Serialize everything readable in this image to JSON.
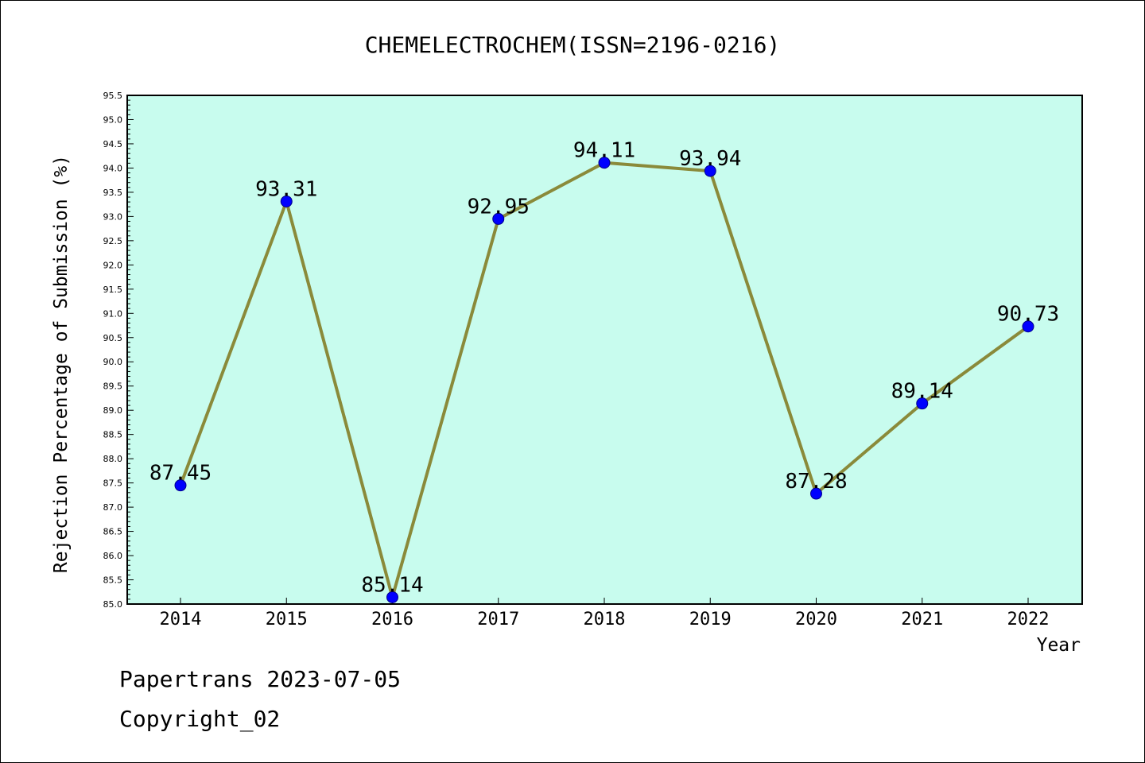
{
  "chart_data": {
    "type": "line",
    "title": "CHEMELECTROCHEM(ISSN=2196-0216)",
    "xlabel": "Year",
    "ylabel": "Rejection Percentage of Submission (%)",
    "categories": [
      "2014",
      "2015",
      "2016",
      "2017",
      "2018",
      "2019",
      "2020",
      "2021",
      "2022"
    ],
    "values": [
      87.45,
      93.31,
      85.14,
      92.95,
      94.11,
      93.94,
      87.28,
      89.14,
      90.73
    ],
    "data_labels": [
      "87.45",
      "93.31",
      "85.14",
      "92.95",
      "94.11",
      "93.94",
      "87.28",
      "89.14",
      "90.73"
    ],
    "ylim": [
      85.0,
      95.5
    ],
    "ytick_step": 0.5,
    "yticks": [
      "85.0",
      "85.5",
      "86.0",
      "86.5",
      "87.0",
      "87.5",
      "88.0",
      "88.5",
      "89.0",
      "89.5",
      "90.0",
      "90.5",
      "91.0",
      "91.5",
      "92.0",
      "92.5",
      "93.0",
      "93.5",
      "94.0",
      "94.5",
      "95.0",
      "95.5"
    ],
    "grid": false,
    "colors": {
      "plot_background": "#c8fcee",
      "line": "#8a8a3a",
      "marker_fill": "#0000ff",
      "marker_edge": "#00008b"
    }
  },
  "footer": {
    "line1": "Papertrans 2023-07-05",
    "line2": "Copyright_02"
  }
}
